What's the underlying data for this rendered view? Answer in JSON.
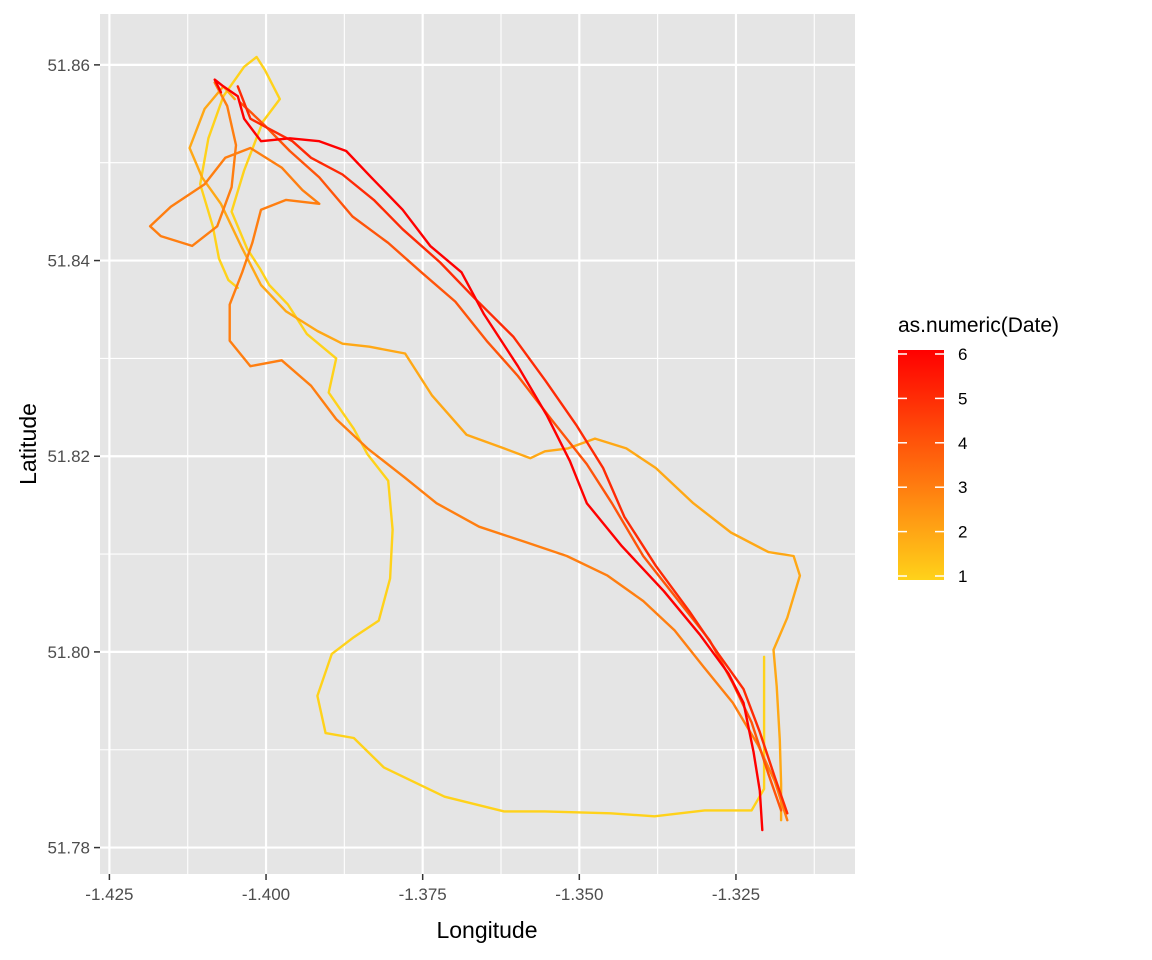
{
  "chart_data": {
    "type": "line",
    "title": "",
    "xlabel": "Longitude",
    "ylabel": "Latitude",
    "xlim": [
      -1.4265,
      -1.306
    ],
    "ylim": [
      51.7773,
      51.8652
    ],
    "x_ticks": [
      -1.425,
      -1.4,
      -1.375,
      -1.35,
      -1.325
    ],
    "x_tick_labels": [
      "-1.425",
      "-1.400",
      "-1.375",
      "-1.350",
      "-1.325"
    ],
    "y_ticks": [
      51.78,
      51.8,
      51.82,
      51.84,
      51.86
    ],
    "y_tick_labels": [
      "51.78",
      "51.80",
      "51.82",
      "51.84",
      "51.86"
    ],
    "grid": true,
    "panel_background": "#e5e5e5",
    "legend": {
      "title": "as.numeric(Date)",
      "position": "right",
      "breaks": [
        1,
        2,
        3,
        4,
        5,
        6
      ],
      "labels": [
        "1",
        "2",
        "3",
        "4",
        "5",
        "6"
      ],
      "color_low": "#ffd21a",
      "color_high": "#ff0000",
      "limits": [
        1,
        6
      ]
    },
    "series": [
      {
        "date": 1,
        "points": [
          [
            -1.3205,
            51.7995
          ],
          [
            -1.3205,
            51.786
          ],
          [
            -1.3225,
            51.7838
          ],
          [
            -1.33,
            51.7838
          ],
          [
            -1.338,
            51.7832
          ],
          [
            -1.345,
            51.7835
          ],
          [
            -1.3555,
            51.7837
          ],
          [
            -1.362,
            51.7837
          ],
          [
            -1.3715,
            51.7852
          ],
          [
            -1.3812,
            51.7882
          ],
          [
            -1.386,
            51.7912
          ],
          [
            -1.3905,
            51.7917
          ],
          [
            -1.3918,
            51.7955
          ],
          [
            -1.3895,
            51.7998
          ],
          [
            -1.386,
            51.8015
          ],
          [
            -1.382,
            51.8032
          ],
          [
            -1.3802,
            51.8075
          ],
          [
            -1.3798,
            51.8125
          ],
          [
            -1.3805,
            51.8175
          ],
          [
            -1.3838,
            51.8202
          ],
          [
            -1.386,
            51.8228
          ],
          [
            -1.39,
            51.8265
          ],
          [
            -1.3888,
            51.83
          ],
          [
            -1.3935,
            51.8325
          ],
          [
            -1.3965,
            51.8355
          ],
          [
            -1.3995,
            51.8375
          ],
          [
            -1.401,
            51.8392
          ],
          [
            -1.403,
            51.8412
          ],
          [
            -1.4055,
            51.845
          ],
          [
            -1.4035,
            51.8492
          ],
          [
            -1.4005,
            51.8542
          ],
          [
            -1.3978,
            51.8565
          ],
          [
            -1.4002,
            51.8595
          ],
          [
            -1.4015,
            51.8608
          ],
          [
            -1.4035,
            51.8598
          ],
          [
            -1.4068,
            51.8568
          ],
          [
            -1.4092,
            51.8525
          ],
          [
            -1.4105,
            51.8478
          ],
          [
            -1.4085,
            51.8435
          ],
          [
            -1.4075,
            51.8402
          ],
          [
            -1.406,
            51.838
          ],
          [
            -1.4045,
            51.8372
          ]
        ]
      },
      {
        "date": 2,
        "points": [
          [
            -1.3178,
            51.7828
          ],
          [
            -1.3178,
            51.7865
          ],
          [
            -1.318,
            51.791
          ],
          [
            -1.3185,
            51.7965
          ],
          [
            -1.319,
            51.8002
          ],
          [
            -1.3168,
            51.8035
          ],
          [
            -1.3148,
            51.8078
          ],
          [
            -1.3158,
            51.8098
          ],
          [
            -1.3198,
            51.8102
          ],
          [
            -1.3258,
            51.8122
          ],
          [
            -1.3318,
            51.8152
          ],
          [
            -1.3378,
            51.8188
          ],
          [
            -1.3425,
            51.8208
          ],
          [
            -1.3475,
            51.8218
          ],
          [
            -1.3518,
            51.8208
          ],
          [
            -1.3555,
            51.8205
          ],
          [
            -1.3578,
            51.8198
          ],
          [
            -1.362,
            51.8208
          ],
          [
            -1.368,
            51.8222
          ],
          [
            -1.3735,
            51.8262
          ],
          [
            -1.3778,
            51.8305
          ],
          [
            -1.3835,
            51.8312
          ],
          [
            -1.3878,
            51.8315
          ],
          [
            -1.3918,
            51.8328
          ],
          [
            -1.3968,
            51.8348
          ],
          [
            -1.4008,
            51.8375
          ],
          [
            -1.404,
            51.8415
          ],
          [
            -1.4072,
            51.8458
          ],
          [
            -1.4102,
            51.8485
          ],
          [
            -1.4122,
            51.8515
          ],
          [
            -1.4098,
            51.8555
          ],
          [
            -1.4068,
            51.8578
          ],
          [
            -1.405,
            51.8565
          ]
        ]
      },
      {
        "date": 3,
        "points": [
          [
            -1.3168,
            51.7828
          ],
          [
            -1.3188,
            51.7868
          ],
          [
            -1.3215,
            51.7905
          ],
          [
            -1.3255,
            51.7948
          ],
          [
            -1.3302,
            51.7985
          ],
          [
            -1.3348,
            51.8022
          ],
          [
            -1.3398,
            51.8052
          ],
          [
            -1.3455,
            51.8078
          ],
          [
            -1.352,
            51.8098
          ],
          [
            -1.3585,
            51.8112
          ],
          [
            -1.366,
            51.8128
          ],
          [
            -1.3728,
            51.8152
          ],
          [
            -1.3778,
            51.8178
          ],
          [
            -1.3838,
            51.8208
          ],
          [
            -1.3888,
            51.8238
          ],
          [
            -1.3928,
            51.8272
          ],
          [
            -1.3975,
            51.8298
          ],
          [
            -1.4025,
            51.8292
          ],
          [
            -1.4058,
            51.8318
          ],
          [
            -1.4058,
            51.8355
          ],
          [
            -1.4038,
            51.8388
          ],
          [
            -1.4022,
            51.8418
          ],
          [
            -1.4008,
            51.8452
          ],
          [
            -1.3968,
            51.8462
          ],
          [
            -1.3915,
            51.8458
          ],
          [
            -1.3942,
            51.8472
          ],
          [
            -1.3975,
            51.8495
          ],
          [
            -1.4025,
            51.8515
          ],
          [
            -1.4065,
            51.8505
          ],
          [
            -1.4098,
            51.8478
          ],
          [
            -1.4152,
            51.8455
          ],
          [
            -1.4185,
            51.8435
          ],
          [
            -1.4168,
            51.8425
          ],
          [
            -1.4118,
            51.8415
          ],
          [
            -1.4078,
            51.8435
          ],
          [
            -1.4055,
            51.8475
          ],
          [
            -1.4048,
            51.8518
          ],
          [
            -1.4062,
            51.8558
          ],
          [
            -1.4082,
            51.8582
          ]
        ]
      },
      {
        "date": 4,
        "points": [
          [
            -1.3178,
            51.7838
          ],
          [
            -1.3198,
            51.7875
          ],
          [
            -1.3225,
            51.7928
          ],
          [
            -1.3255,
            51.7968
          ],
          [
            -1.3292,
            51.8012
          ],
          [
            -1.3345,
            51.8055
          ],
          [
            -1.3398,
            51.8098
          ],
          [
            -1.3448,
            51.8152
          ],
          [
            -1.3488,
            51.8192
          ],
          [
            -1.3545,
            51.8238
          ],
          [
            -1.3598,
            51.8282
          ],
          [
            -1.3648,
            51.8318
          ],
          [
            -1.3698,
            51.8358
          ],
          [
            -1.3752,
            51.8388
          ],
          [
            -1.3805,
            51.8418
          ],
          [
            -1.3862,
            51.8445
          ],
          [
            -1.3915,
            51.8485
          ],
          [
            -1.3962,
            51.8512
          ],
          [
            -1.4002,
            51.8538
          ],
          [
            -1.4025,
            51.8552
          ],
          [
            -1.4042,
            51.8562
          ]
        ]
      },
      {
        "date": 5,
        "points": [
          [
            -1.3168,
            51.7835
          ],
          [
            -1.3188,
            51.7872
          ],
          [
            -1.3212,
            51.7918
          ],
          [
            -1.3238,
            51.7962
          ],
          [
            -1.3278,
            51.7998
          ],
          [
            -1.3325,
            51.8042
          ],
          [
            -1.3378,
            51.8088
          ],
          [
            -1.3428,
            51.8138
          ],
          [
            -1.3462,
            51.8188
          ],
          [
            -1.3505,
            51.8232
          ],
          [
            -1.3555,
            51.8278
          ],
          [
            -1.3605,
            51.8322
          ],
          [
            -1.3668,
            51.8362
          ],
          [
            -1.3722,
            51.8398
          ],
          [
            -1.3782,
            51.8432
          ],
          [
            -1.3828,
            51.8462
          ],
          [
            -1.3878,
            51.8488
          ],
          [
            -1.3928,
            51.8505
          ],
          [
            -1.3958,
            51.8522
          ],
          [
            -1.4005,
            51.8538
          ],
          [
            -1.4025,
            51.8545
          ],
          [
            -1.4045,
            51.8578
          ]
        ]
      },
      {
        "date": 6,
        "points": [
          [
            -1.3208,
            51.7818
          ],
          [
            -1.3212,
            51.7858
          ],
          [
            -1.3222,
            51.7898
          ],
          [
            -1.3238,
            51.7948
          ],
          [
            -1.3262,
            51.7978
          ],
          [
            -1.3308,
            51.8018
          ],
          [
            -1.3365,
            51.8062
          ],
          [
            -1.3432,
            51.8108
          ],
          [
            -1.3488,
            51.8152
          ],
          [
            -1.3515,
            51.8195
          ],
          [
            -1.3552,
            51.8242
          ],
          [
            -1.3598,
            51.8292
          ],
          [
            -1.3652,
            51.8345
          ],
          [
            -1.3688,
            51.8388
          ],
          [
            -1.3738,
            51.8415
          ],
          [
            -1.3782,
            51.8452
          ],
          [
            -1.3832,
            51.8485
          ],
          [
            -1.3872,
            51.8512
          ],
          [
            -1.3915,
            51.8522
          ],
          [
            -1.3962,
            51.8525
          ],
          [
            -1.4008,
            51.8522
          ],
          [
            -1.4035,
            51.8545
          ],
          [
            -1.4045,
            51.8568
          ],
          [
            -1.4068,
            51.8578
          ],
          [
            -1.4082,
            51.8585
          ],
          [
            -1.4072,
            51.8572
          ]
        ]
      }
    ]
  }
}
